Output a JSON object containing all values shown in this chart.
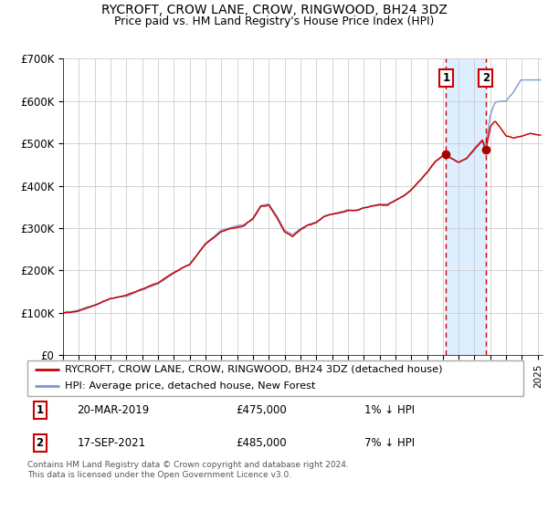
{
  "title": "RYCROFT, CROW LANE, CROW, RINGWOOD, BH24 3DZ",
  "subtitle": "Price paid vs. HM Land Registry's House Price Index (HPI)",
  "legend_label_red": "RYCROFT, CROW LANE, CROW, RINGWOOD, BH24 3DZ (detached house)",
  "legend_label_blue": "HPI: Average price, detached house, New Forest",
  "annotation1_date": "20-MAR-2019",
  "annotation1_price": "£475,000",
  "annotation1_hpi": "1% ↓ HPI",
  "annotation2_date": "17-SEP-2021",
  "annotation2_price": "£485,000",
  "annotation2_hpi": "7% ↓ HPI",
  "footnote": "Contains HM Land Registry data © Crown copyright and database right 2024.\nThis data is licensed under the Open Government Licence v3.0.",
  "red_color": "#cc0000",
  "blue_color": "#7799cc",
  "grid_color": "#cccccc",
  "background_color": "#ffffff",
  "shaded_color": "#ddeeff",
  "ylim": [
    0,
    700000
  ],
  "yticks": [
    0,
    100000,
    200000,
    300000,
    400000,
    500000,
    600000,
    700000
  ],
  "ytick_labels": [
    "£0",
    "£100K",
    "£200K",
    "£300K",
    "£400K",
    "£500K",
    "£600K",
    "£700K"
  ],
  "sale1_year": 2019.21,
  "sale2_year": 2021.71,
  "sale1_value": 475000,
  "sale2_value": 485000,
  "xlim_left": 1995,
  "xlim_right": 2025.3
}
